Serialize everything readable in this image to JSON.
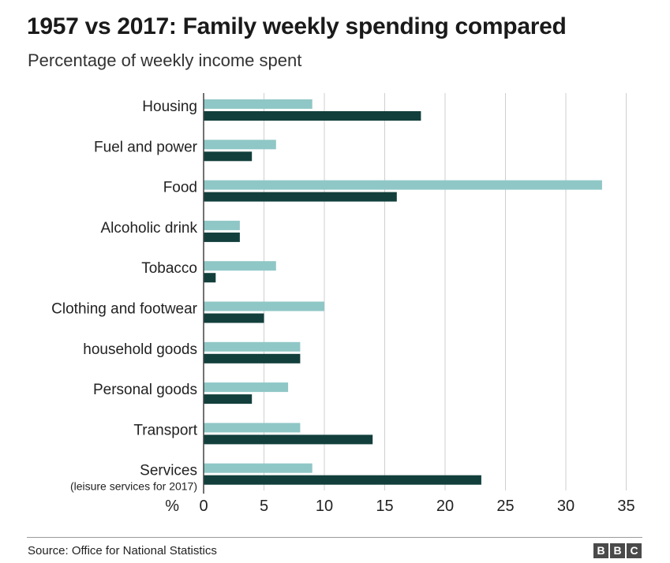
{
  "chart_data": {
    "type": "bar",
    "orientation": "horizontal",
    "title": "1957 vs 2017: Family weekly spending compared",
    "subtitle": "Percentage of weekly income spent",
    "axis_unit_label": "%",
    "categories": [
      "Housing",
      "Fuel and power",
      "Food",
      "Alcoholic drink",
      "Tobacco",
      "Clothing and footwear",
      "household goods",
      "Personal goods",
      "Transport",
      "Services"
    ],
    "category_notes": [
      "",
      "",
      "",
      "",
      "",
      "",
      "",
      "",
      "",
      "(leisure services for 2017)"
    ],
    "series": [
      {
        "values": [
          9,
          6,
          33,
          3,
          6,
          10,
          8,
          7,
          8,
          9
        ],
        "color": "#8fc7c6"
      },
      {
        "values": [
          18,
          4,
          16,
          3,
          1,
          5,
          8,
          4,
          14,
          23
        ],
        "color": "#123f3c"
      }
    ],
    "xlim": [
      0,
      35
    ],
    "xticks": [
      0,
      5,
      10,
      15,
      20,
      25,
      30,
      35
    ],
    "grid": true
  },
  "footer": {
    "source": "Source: Office for National Statistics",
    "logo_letters": [
      "B",
      "B",
      "C"
    ]
  }
}
